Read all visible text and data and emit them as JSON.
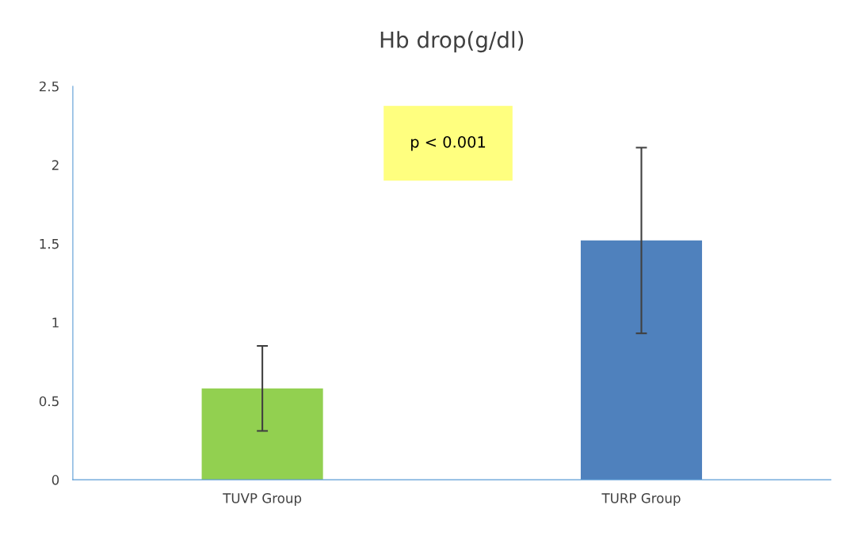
{
  "chart_data": {
    "type": "bar",
    "title": "Hb drop(g/dl)",
    "categories": [
      "TUVP Group",
      "TURP Group"
    ],
    "values": [
      0.58,
      1.52
    ],
    "colors": [
      "#92d050",
      "#4f81bd"
    ],
    "errors": [
      0.27,
      0.59
    ],
    "ylim": [
      0,
      2.5
    ],
    "yticks": [
      0,
      0.5,
      1,
      1.5,
      2,
      2.5
    ],
    "grid": false,
    "legend": false,
    "annotations": [
      "p < 0.001"
    ]
  }
}
